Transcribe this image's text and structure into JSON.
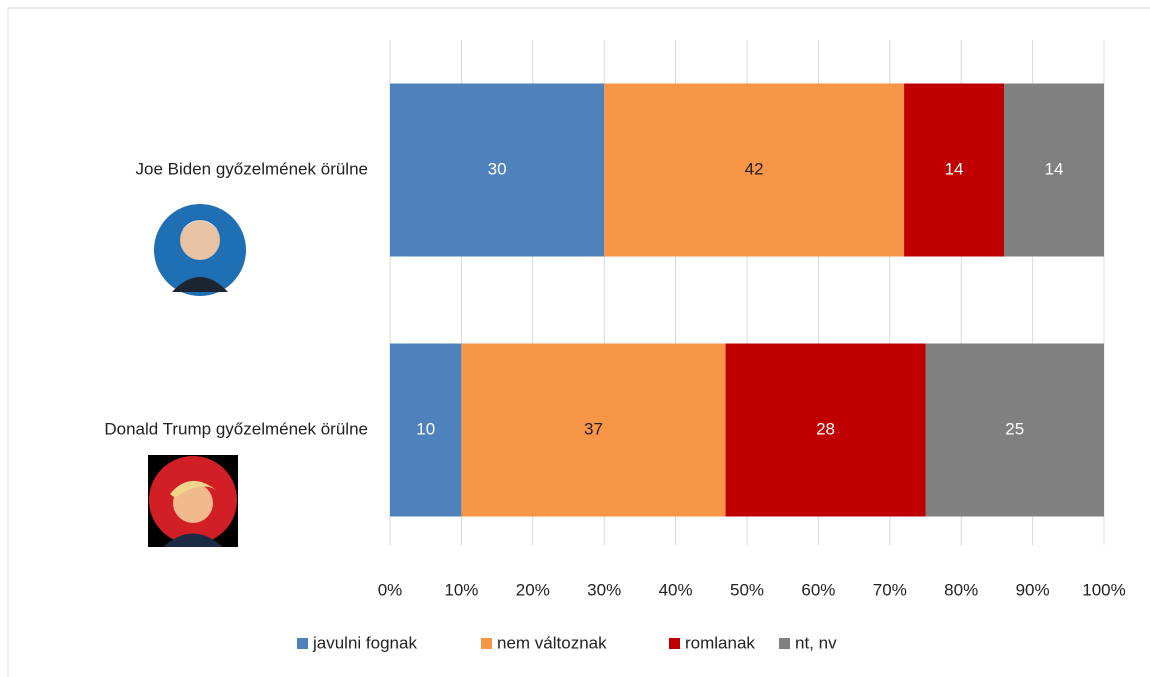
{
  "chart_data": {
    "type": "stacked-bar-horizontal",
    "categories": [
      "Joe Biden győzelmének örülne",
      "Donald Trump győzelmének örülne"
    ],
    "series": [
      {
        "name": "javulni fognak",
        "color": "#4f81bd",
        "label_color": "#ffffff",
        "values": [
          30,
          10
        ]
      },
      {
        "name": "nem változnak",
        "color": "#f79646",
        "label_color": "#222222",
        "values": [
          42,
          37
        ]
      },
      {
        "name": "romlanak",
        "color": "#c00000",
        "label_color": "#ffffff",
        "values": [
          14,
          28
        ]
      },
      {
        "name": "nt, nv",
        "color": "#808080",
        "label_color": "#ffffff",
        "values": [
          14,
          25
        ]
      }
    ],
    "xlim": [
      0,
      100
    ],
    "xticks": [
      {
        "value": 0,
        "label": "0%"
      },
      {
        "value": 10,
        "label": "10%"
      },
      {
        "value": 20,
        "label": "20%"
      },
      {
        "value": 30,
        "label": "30%"
      },
      {
        "value": 40,
        "label": "40%"
      },
      {
        "value": 50,
        "label": "50%"
      },
      {
        "value": 60,
        "label": "60%"
      },
      {
        "value": 70,
        "label": "70%"
      },
      {
        "value": 80,
        "label": "80%"
      },
      {
        "value": 90,
        "label": "90%"
      },
      {
        "value": 100,
        "label": "100%"
      }
    ],
    "grid": true,
    "legend": "bottom"
  }
}
